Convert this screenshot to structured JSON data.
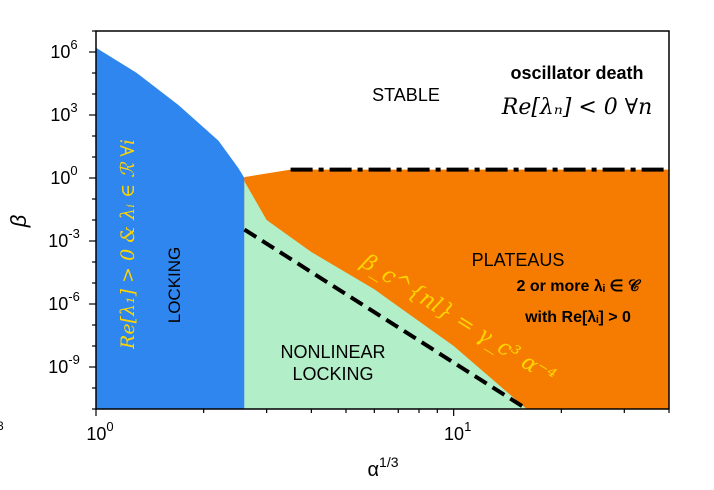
{
  "chart_data": {
    "type": "area",
    "title": "",
    "xlabel": "α^{1/3}",
    "xlabel_base": "α",
    "xlabel_sup": "1/3",
    "ylabel": "β",
    "xscale": "log",
    "yscale": "log",
    "xlim": [
      1,
      40
    ],
    "ylim": [
      1e-11,
      10000000.0
    ],
    "x_ticks": [
      {
        "value": 1,
        "base": "10",
        "exp": "0"
      },
      {
        "value": 10,
        "base": "10",
        "exp": "1"
      }
    ],
    "y_ticks": [
      {
        "value": 1000000.0,
        "base": "10",
        "exp": "6"
      },
      {
        "value": 1000.0,
        "base": "10",
        "exp": "3"
      },
      {
        "value": 1,
        "base": "10",
        "exp": "0"
      },
      {
        "value": 0.001,
        "base": "10",
        "exp": "-3"
      },
      {
        "value": 1e-06,
        "base": "10",
        "exp": "-6"
      },
      {
        "value": 1e-09,
        "base": "10",
        "exp": "-9"
      }
    ],
    "regions": [
      {
        "id": "locking",
        "color": "#2f86ef",
        "labels": [
          "LOCKING"
        ],
        "condition": "Re[λ₁] > 0 & λᵢ ∈ ℛ   ∀i",
        "boundary": [
          [
            1,
            1600000.0
          ],
          [
            1.3,
            100000.0
          ],
          [
            1.7,
            3000.0
          ],
          [
            2.2,
            60
          ],
          [
            2.5,
            3
          ],
          [
            2.6,
            1
          ]
        ]
      },
      {
        "id": "stable",
        "color": "#ffffff",
        "labels": [
          "STABLE"
        ]
      },
      {
        "id": "oscillator-death",
        "labels": [
          "oscillator death"
        ],
        "condition": "Re[λₙ] < 0   ∀n"
      },
      {
        "id": "plateaus",
        "color": "#f57c00",
        "labels": [
          "PLATEAUS"
        ],
        "condition_lines": [
          "2 or more λᵢ ∈ 𝒞",
          "with Re[λᵢ] > 0"
        ],
        "boundary": [
          [
            2.6,
            1.1
          ],
          [
            3.5,
            2.5
          ],
          [
            40,
            2.5
          ]
        ]
      },
      {
        "id": "nonlinear-locking",
        "color": "#b2eec8",
        "labels": [
          "NONLINEAR",
          "LOCKING"
        ],
        "boundary": [
          [
            2.6,
            0.7
          ],
          [
            3,
            0.01
          ],
          [
            4,
            0.0003
          ],
          [
            6,
            5e-06
          ],
          [
            10,
            1e-08
          ],
          [
            16,
            1e-11
          ]
        ]
      }
    ],
    "series": [
      {
        "name": "",
        "style": "dash-dot",
        "x": [
          3.5,
          40
        ],
        "y": [
          2.5,
          2.5
        ]
      },
      {
        "name": "",
        "style": "dashed",
        "x": [
          2.6,
          16
        ],
        "y": [
          0.0035,
          1e-11
        ]
      }
    ],
    "annotations": [
      {
        "id": "critical-line-label",
        "text": "β_c^{nl} = γ_c³ α⁻⁴",
        "color": "#ffd400"
      }
    ],
    "partial_left_label": "3",
    "grid": false,
    "legend": "none"
  },
  "colors": {
    "locking": "#2f86ef",
    "plateaus": "#f57c00",
    "nonlinear": "#b2eec8",
    "annotation": "#ffd400",
    "axis": "#000000"
  }
}
